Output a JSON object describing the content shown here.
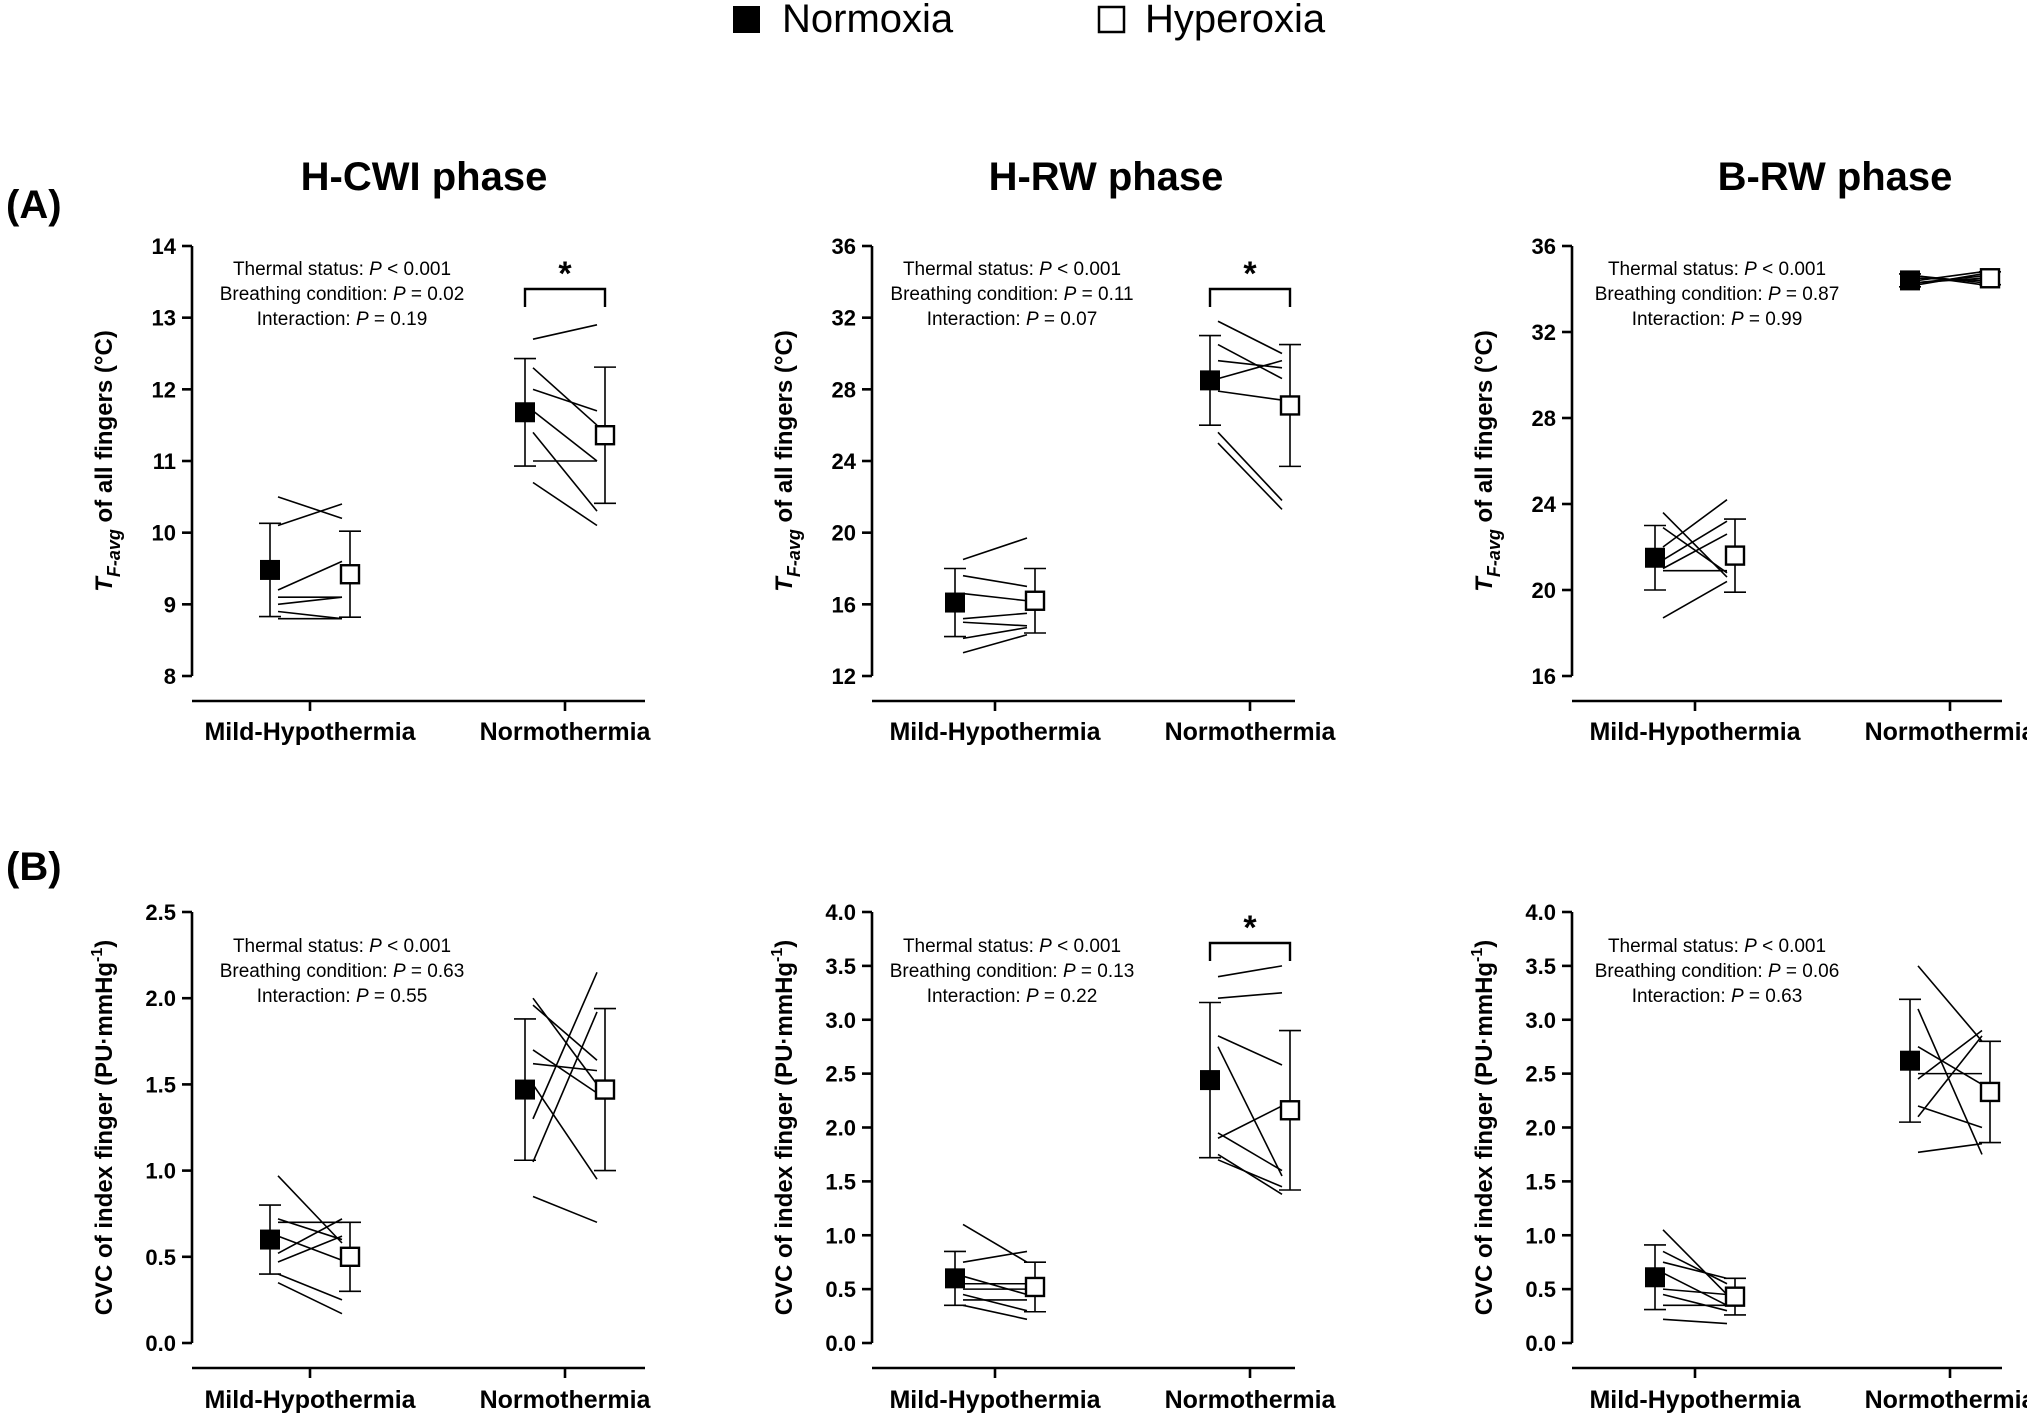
{
  "legend": [
    {
      "label": "Normoxia",
      "marker": "filled-square"
    },
    {
      "label": "Hyperoxia",
      "marker": "open-square"
    }
  ],
  "row_labels": [
    "(A)",
    "(B)"
  ],
  "phase_titles": [
    "H-CWI phase",
    "H-RW phase",
    "B-RW phase"
  ],
  "colors": {
    "ink": "#000000",
    "open_fill": "#ffffff"
  },
  "chart_data": [
    {
      "type": "scatter",
      "row": "(A)",
      "title": "H-CWI phase",
      "ylabel": "T_F-avg of all fingers (°C)",
      "ylabel_parts": {
        "symbol": "T",
        "subscript": "F-avg",
        "rest": " of all fingers (°C)"
      },
      "ylim": [
        8,
        14
      ],
      "yticks": [
        "8",
        "9",
        "10",
        "11",
        "12",
        "13",
        "14"
      ],
      "categories": [
        "Mild-Hypothermia",
        "Normothermia"
      ],
      "stats": [
        {
          "label": "Thermal status: ",
          "p": "P",
          "rest": " < 0.001"
        },
        {
          "label": "Breathing condition: ",
          "p": "P",
          "rest": " = 0.02"
        },
        {
          "label": "Interaction: ",
          "p": "P",
          "rest": " = 0.19"
        }
      ],
      "significance": {
        "category": "Normothermia",
        "label": "*"
      },
      "series": [
        {
          "name": "Normoxia",
          "means": [
            9.48,
            11.68
          ],
          "sd": [
            0.65,
            0.75
          ]
        },
        {
          "name": "Hyperoxia",
          "means": [
            9.42,
            11.36
          ],
          "sd": [
            0.6,
            0.95
          ]
        }
      ],
      "individuals": [
        [
          [
            10.1,
            10.4
          ],
          [
            11.7,
            11.0
          ]
        ],
        [
          [
            10.5,
            10.2
          ],
          [
            12.3,
            11.5
          ]
        ],
        [
          [
            9.2,
            9.6
          ],
          [
            12.0,
            11.7
          ]
        ],
        [
          [
            9.1,
            9.1
          ],
          [
            12.7,
            12.9
          ]
        ],
        [
          [
            8.9,
            8.8
          ],
          [
            11.0,
            11.0
          ]
        ],
        [
          [
            8.8,
            8.8
          ],
          [
            10.7,
            10.1
          ]
        ],
        [
          [
            9.0,
            9.1
          ],
          [
            11.4,
            10.3
          ]
        ]
      ]
    },
    {
      "type": "scatter",
      "row": "(A)",
      "title": "H-RW phase",
      "ylabel": "T_F-avg of all fingers (°C)",
      "ylabel_parts": {
        "symbol": "T",
        "subscript": "F-avg",
        "rest": " of all fingers (°C)"
      },
      "ylim": [
        12,
        36
      ],
      "yticks": [
        "12",
        "16",
        "20",
        "24",
        "28",
        "32",
        "36"
      ],
      "categories": [
        "Mild-Hypothermia",
        "Normothermia"
      ],
      "stats": [
        {
          "label": "Thermal status: ",
          "p": "P",
          "rest": " < 0.001"
        },
        {
          "label": "Breathing condition: ",
          "p": "P",
          "rest": " = 0.11"
        },
        {
          "label": "Interaction: ",
          "p": "P",
          "rest": " = 0.07"
        }
      ],
      "significance": {
        "category": "Normothermia",
        "label": "*"
      },
      "series": [
        {
          "name": "Normoxia",
          "means": [
            16.1,
            28.5
          ],
          "sd": [
            1.9,
            2.5
          ]
        },
        {
          "name": "Hyperoxia",
          "means": [
            16.2,
            27.1
          ],
          "sd": [
            1.8,
            3.4
          ]
        }
      ],
      "individuals": [
        [
          [
            18.5,
            19.7
          ],
          [
            29.6,
            29.2
          ]
        ],
        [
          [
            17.6,
            17.0
          ],
          [
            31.8,
            30.0
          ]
        ],
        [
          [
            16.6,
            16.2
          ],
          [
            28.6,
            29.6
          ]
        ],
        [
          [
            15.2,
            15.5
          ],
          [
            30.5,
            28.6
          ]
        ],
        [
          [
            15.0,
            14.8
          ],
          [
            27.9,
            27.4
          ]
        ],
        [
          [
            14.1,
            14.7
          ],
          [
            25.6,
            21.8
          ]
        ],
        [
          [
            13.3,
            14.3
          ],
          [
            25.0,
            21.3
          ]
        ]
      ]
    },
    {
      "type": "scatter",
      "row": "(A)",
      "title": "B-RW phase",
      "ylabel": "T_F-avg of all fingers (°C)",
      "ylabel_parts": {
        "symbol": "T",
        "subscript": "F-avg",
        "rest": " of all fingers (°C)"
      },
      "ylim": [
        16,
        36
      ],
      "yticks": [
        "16",
        "20",
        "24",
        "28",
        "32",
        "36"
      ],
      "categories": [
        "Mild-Hypothermia",
        "Normothermia"
      ],
      "stats": [
        {
          "label": "Thermal status: ",
          "p": "P",
          "rest": " < 0.001"
        },
        {
          "label": "Breathing condition: ",
          "p": "P",
          "rest": " = 0.87"
        },
        {
          "label": "Interaction: ",
          "p": "P",
          "rest": " = 0.99"
        }
      ],
      "significance": null,
      "series": [
        {
          "name": "Normoxia",
          "means": [
            21.5,
            34.4
          ],
          "sd": [
            1.5,
            0.3
          ]
        },
        {
          "name": "Hyperoxia",
          "means": [
            21.6,
            34.5
          ],
          "sd": [
            1.7,
            0.3
          ]
        }
      ],
      "individuals": [
        [
          [
            23.6,
            20.6
          ],
          [
            34.2,
            34.7
          ]
        ],
        [
          [
            22.9,
            20.8
          ],
          [
            34.6,
            34.2
          ]
        ],
        [
          [
            22.0,
            24.2
          ],
          [
            34.4,
            34.8
          ]
        ],
        [
          [
            21.4,
            23.2
          ],
          [
            34.5,
            34.4
          ]
        ],
        [
          [
            21.0,
            22.6
          ],
          [
            34.3,
            34.6
          ]
        ],
        [
          [
            20.9,
            20.9
          ],
          [
            34.6,
            34.3
          ]
        ],
        [
          [
            18.7,
            20.4
          ],
          [
            34.3,
            34.5
          ]
        ]
      ]
    },
    {
      "type": "scatter",
      "row": "(B)",
      "title": "H-CWI phase",
      "ylabel": "CVC of index finger (PU·mmHg-1)",
      "ylabel_parts": {
        "main": "CVC of index finger (PU·mmHg",
        "sup": "-1",
        "close": ")"
      },
      "ylim": [
        0,
        2.5
      ],
      "yticks": [
        "0.0",
        "0.5",
        "1.0",
        "1.5",
        "2.0",
        "2.5"
      ],
      "categories": [
        "Mild-Hypothermia",
        "Normothermia"
      ],
      "stats": [
        {
          "label": "Thermal status: ",
          "p": "P",
          "rest": " < 0.001"
        },
        {
          "label": "Breathing condition: ",
          "p": "P",
          "rest": " = 0.63"
        },
        {
          "label": "Interaction: ",
          "p": "P",
          "rest": " = 0.55"
        }
      ],
      "significance": null,
      "series": [
        {
          "name": "Normoxia",
          "means": [
            0.6,
            1.47
          ],
          "sd": [
            0.2,
            0.41
          ]
        },
        {
          "name": "Hyperoxia",
          "means": [
            0.5,
            1.47
          ],
          "sd": [
            0.2,
            0.47
          ]
        }
      ],
      "individuals": [
        [
          [
            0.97,
            0.58
          ],
          [
            2.0,
            1.5
          ]
        ],
        [
          [
            0.72,
            0.6
          ],
          [
            1.96,
            1.64
          ]
        ],
        [
          [
            0.7,
            0.7
          ],
          [
            1.62,
            1.58
          ]
        ],
        [
          [
            0.62,
            0.48
          ],
          [
            1.3,
            2.15
          ]
        ],
        [
          [
            0.52,
            0.72
          ],
          [
            1.05,
            1.92
          ]
        ],
        [
          [
            0.47,
            0.62
          ],
          [
            1.5,
            0.95
          ]
        ],
        [
          [
            0.4,
            0.25
          ],
          [
            1.7,
            1.45
          ]
        ],
        [
          [
            0.35,
            0.17
          ],
          [
            0.85,
            0.7
          ]
        ]
      ]
    },
    {
      "type": "scatter",
      "row": "(B)",
      "title": "H-RW phase",
      "ylabel": "CVC of index finger (PU·mmHg-1)",
      "ylabel_parts": {
        "main": "CVC of index finger (PU·mmHg",
        "sup": "-1",
        "close": ")"
      },
      "ylim": [
        0,
        4.0
      ],
      "yticks": [
        "0.0",
        "0.5",
        "1.0",
        "1.5",
        "2.0",
        "2.5",
        "3.0",
        "3.5",
        "4.0"
      ],
      "categories": [
        "Mild-Hypothermia",
        "Normothermia"
      ],
      "stats": [
        {
          "label": "Thermal status: ",
          "p": "P",
          "rest": " < 0.001"
        },
        {
          "label": "Breathing condition: ",
          "p": "P",
          "rest": " = 0.13"
        },
        {
          "label": "Interaction: ",
          "p": "P",
          "rest": " = 0.22"
        }
      ],
      "significance": {
        "category": "Normothermia",
        "label": "*"
      },
      "series": [
        {
          "name": "Normoxia",
          "means": [
            0.6,
            2.44
          ],
          "sd": [
            0.25,
            0.72
          ]
        },
        {
          "name": "Hyperoxia",
          "means": [
            0.52,
            2.16
          ],
          "sd": [
            0.23,
            0.74
          ]
        }
      ],
      "individuals": [
        [
          [
            1.1,
            0.75
          ],
          [
            3.4,
            3.5
          ]
        ],
        [
          [
            0.75,
            0.85
          ],
          [
            3.2,
            3.25
          ]
        ],
        [
          [
            0.62,
            0.45
          ],
          [
            2.85,
            2.58
          ]
        ],
        [
          [
            0.55,
            0.55
          ],
          [
            2.75,
            1.55
          ]
        ],
        [
          [
            0.5,
            0.5
          ],
          [
            1.95,
            1.6
          ]
        ],
        [
          [
            0.45,
            0.3
          ],
          [
            1.9,
            2.2
          ]
        ],
        [
          [
            0.4,
            0.4
          ],
          [
            1.7,
            1.45
          ]
        ],
        [
          [
            0.35,
            0.22
          ],
          [
            1.75,
            1.38
          ]
        ]
      ]
    },
    {
      "type": "scatter",
      "row": "(B)",
      "title": "B-RW phase",
      "ylabel": "CVC of index finger (PU·mmHg-1)",
      "ylabel_parts": {
        "main": "CVC of index finger (PU·mmHg",
        "sup": "-1",
        "close": ")"
      },
      "ylim": [
        0,
        4.0
      ],
      "yticks": [
        "0.0",
        "0.5",
        "1.0",
        "1.5",
        "2.0",
        "2.5",
        "3.0",
        "3.5",
        "4.0"
      ],
      "categories": [
        "Mild-Hypothermia",
        "Normothermia"
      ],
      "stats": [
        {
          "label": "Thermal status: ",
          "p": "P",
          "rest": " < 0.001"
        },
        {
          "label": "Breathing condition: ",
          "p": "P",
          "rest": " = 0.06"
        },
        {
          "label": "Interaction: ",
          "p": "P",
          "rest": " = 0.63"
        }
      ],
      "significance": null,
      "series": [
        {
          "name": "Normoxia",
          "means": [
            0.61,
            2.62
          ],
          "sd": [
            0.3,
            0.57
          ]
        },
        {
          "name": "Hyperoxia",
          "means": [
            0.43,
            2.33
          ],
          "sd": [
            0.17,
            0.47
          ]
        }
      ],
      "individuals": [
        [
          [
            1.05,
            0.45
          ],
          [
            3.5,
            2.8
          ]
        ],
        [
          [
            0.85,
            0.55
          ],
          [
            3.1,
            1.75
          ]
        ],
        [
          [
            0.75,
            0.6
          ],
          [
            2.75,
            2.4
          ]
        ],
        [
          [
            0.65,
            0.35
          ],
          [
            2.5,
            2.5
          ]
        ],
        [
          [
            0.5,
            0.45
          ],
          [
            2.45,
            2.9
          ]
        ],
        [
          [
            0.45,
            0.3
          ],
          [
            2.2,
            2.0
          ]
        ],
        [
          [
            0.35,
            0.35
          ],
          [
            2.1,
            2.85
          ]
        ],
        [
          [
            0.22,
            0.18
          ],
          [
            1.77,
            1.85
          ]
        ]
      ]
    }
  ]
}
